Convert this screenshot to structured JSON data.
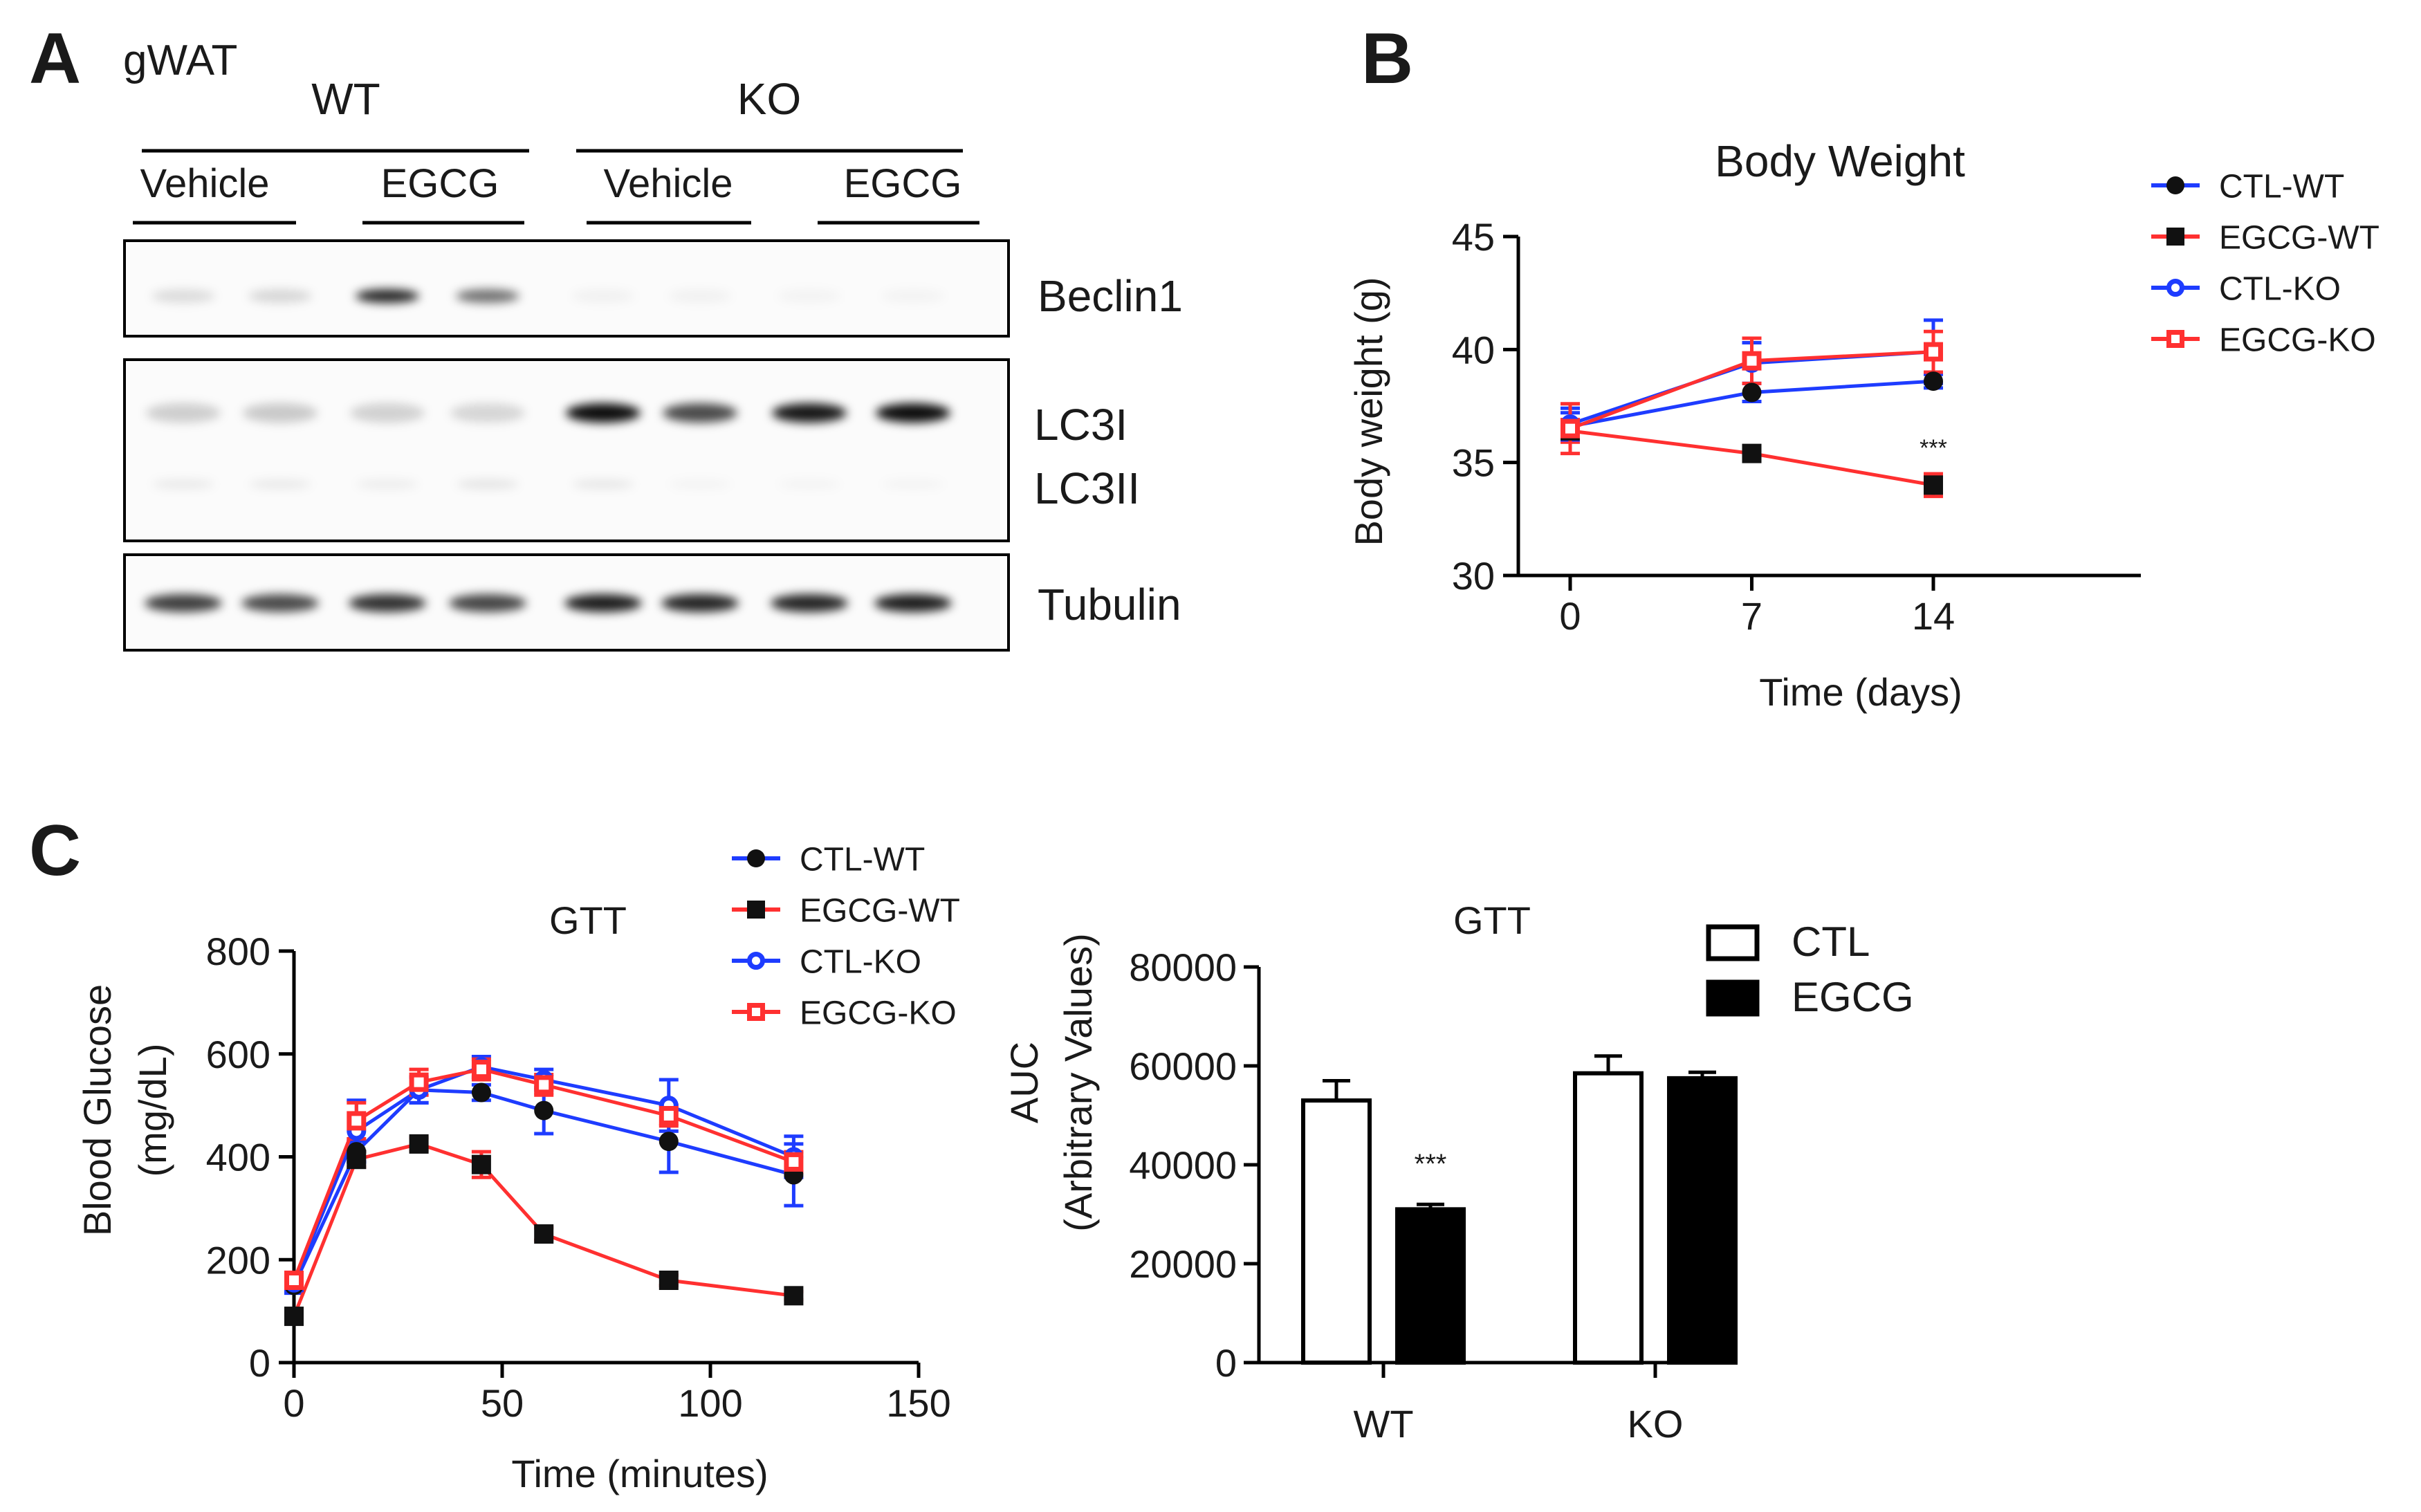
{
  "panelA": {
    "letter": "A",
    "tissue": "gWAT",
    "groups": [
      "WT",
      "KO"
    ],
    "treatments": [
      "Vehicle",
      "EGCG",
      "Vehicle",
      "EGCG"
    ],
    "blot_labels": {
      "beclin": "Beclin1",
      "lc3i": "LC3I",
      "lc3ii": "LC3II",
      "tubulin": "Tubulin"
    },
    "band_intensity": {
      "beclin": [
        0.12,
        0.14,
        0.85,
        0.55,
        0.04,
        0.04,
        0.03,
        0.03
      ],
      "lc3i": [
        0.18,
        0.2,
        0.17,
        0.15,
        0.95,
        0.7,
        0.9,
        0.95
      ],
      "lc3ii": [
        0.07,
        0.07,
        0.06,
        0.09,
        0.08,
        0.03,
        0.03,
        0.03
      ],
      "tubulin": [
        0.75,
        0.7,
        0.8,
        0.72,
        0.88,
        0.85,
        0.85,
        0.88
      ]
    }
  },
  "panelB": {
    "letter": "B"
  },
  "panelC": {
    "letter": "C"
  },
  "chart_data": [
    {
      "id": "body-weight",
      "type": "line",
      "title": "Body Weight",
      "xlabel": "Time (days)",
      "ylabel": "Body weight (g)",
      "xlim": [
        -2,
        22
      ],
      "ylim": [
        30,
        45
      ],
      "xticks": [
        0,
        7,
        14
      ],
      "yticks": [
        30,
        35,
        40,
        45
      ],
      "x": [
        0,
        7,
        14
      ],
      "series": [
        {
          "name": "CTL-WT",
          "color": "#1e3cff",
          "marker": "circle",
          "marker_color": "#111111",
          "values": [
            36.6,
            38.1,
            38.6
          ],
          "err": [
            0.6,
            0.4,
            0.3
          ]
        },
        {
          "name": "EGCG-WT",
          "color": "#ff3030",
          "marker": "square",
          "marker_color": "#111111",
          "values": [
            36.4,
            35.4,
            34.0
          ],
          "err": [
            0.5,
            0.3,
            0.5
          ]
        },
        {
          "name": "CTL-KO",
          "color": "#1e3cff",
          "marker": "open-circle",
          "marker_color": "#1e3cff",
          "values": [
            36.7,
            39.4,
            39.9
          ],
          "err": [
            0.7,
            0.9,
            1.4
          ]
        },
        {
          "name": "EGCG-KO",
          "color": "#ff3030",
          "marker": "open-square",
          "marker_color": "#ff3030",
          "values": [
            36.5,
            39.5,
            39.9
          ],
          "err": [
            1.1,
            1.0,
            0.9
          ]
        }
      ],
      "annotations": [
        {
          "text": "***",
          "x": 14,
          "y": 35.3
        }
      ]
    },
    {
      "id": "gtt-curve",
      "type": "line",
      "title": "GTT",
      "xlabel": "Time (minutes)",
      "ylabel_lines": [
        "Blood Glucose",
        "(mg/dL)"
      ],
      "xlim": [
        0,
        150
      ],
      "ylim": [
        0,
        800
      ],
      "xticks": [
        0,
        50,
        100,
        150
      ],
      "yticks": [
        0,
        200,
        400,
        600,
        800
      ],
      "x": [
        0,
        15,
        30,
        45,
        60,
        90,
        120
      ],
      "series": [
        {
          "name": "CTL-WT",
          "color": "#1e3cff",
          "marker": "circle",
          "marker_color": "#111111",
          "values": [
            150,
            410,
            530,
            525,
            490,
            430,
            365
          ],
          "err": [
            15,
            20,
            25,
            15,
            45,
            60,
            60
          ]
        },
        {
          "name": "EGCG-WT",
          "color": "#ff3030",
          "marker": "square",
          "marker_color": "#111111",
          "values": [
            90,
            395,
            425,
            385,
            250,
            160,
            130
          ],
          "err": [
            10,
            15,
            12,
            25,
            12,
            10,
            8
          ]
        },
        {
          "name": "CTL-KO",
          "color": "#1e3cff",
          "marker": "open-circle",
          "marker_color": "#1e3cff",
          "values": [
            155,
            450,
            530,
            575,
            550,
            500,
            400
          ],
          "err": [
            15,
            60,
            25,
            20,
            20,
            50,
            40
          ]
        },
        {
          "name": "EGCG-KO",
          "color": "#ff3030",
          "marker": "open-square",
          "marker_color": "#ff3030",
          "values": [
            160,
            470,
            545,
            570,
            540,
            480,
            390
          ],
          "err": [
            15,
            35,
            25,
            20,
            20,
            20,
            20
          ]
        }
      ]
    },
    {
      "id": "gtt-auc",
      "type": "bar",
      "title": "GTT",
      "ylabel_lines": [
        "AUC",
        "(Arbitrary Values)"
      ],
      "categories": [
        "WT",
        "KO"
      ],
      "ylim": [
        0,
        80000
      ],
      "yticks": [
        0,
        20000,
        40000,
        60000,
        80000
      ],
      "series": [
        {
          "name": "CTL",
          "fill": "#ffffff",
          "values": [
            53000,
            58500
          ],
          "err": [
            4000,
            3500
          ]
        },
        {
          "name": "EGCG",
          "fill": "#000000",
          "values": [
            31000,
            57500
          ],
          "err": [
            1000,
            1200
          ]
        }
      ],
      "annotations": [
        {
          "text": "***",
          "category": "WT",
          "series": "EGCG",
          "y": 40000
        }
      ]
    }
  ]
}
